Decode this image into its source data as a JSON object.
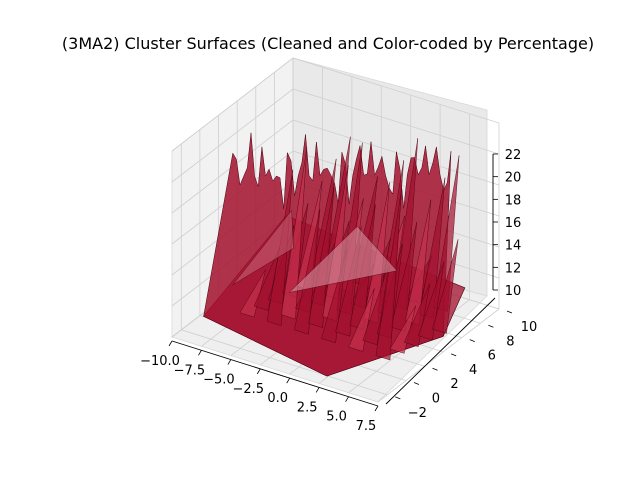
{
  "chart_data": {
    "type": "surface3d",
    "title": "(3MA2) Cluster Surfaces (Cleaned and Color-coded by Percentage)",
    "xlabel": "",
    "ylabel": "",
    "zlabel": "",
    "xlim": [
      -10.0,
      7.5
    ],
    "ylim": [
      -3,
      10
    ],
    "zlim": [
      10,
      22
    ],
    "x_ticks": [
      "−10.0",
      "−7.5",
      "−5.0",
      "−2.5",
      "0.0",
      "2.5",
      "5.0",
      "7.5"
    ],
    "y_ticks": [
      "−2",
      "0",
      "2",
      "4",
      "6",
      "8",
      "10"
    ],
    "z_ticks": [
      "10",
      "12",
      "14",
      "16",
      "18",
      "20",
      "22"
    ],
    "grid": true,
    "surface_color": "#a3102e",
    "surface_edge_color": "#4a0010",
    "pane_colors": [
      "#f2f2f2",
      "#e9e9e9",
      "#efefef"
    ]
  }
}
